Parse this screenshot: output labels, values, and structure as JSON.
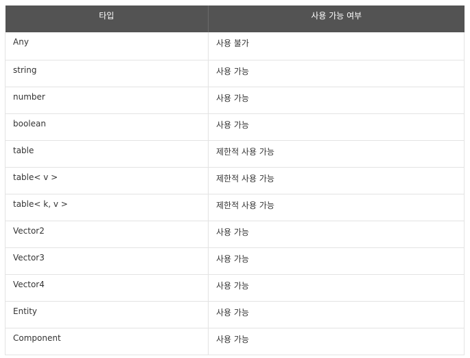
{
  "table": {
    "headers": [
      "타입",
      "사용 가능 여부"
    ],
    "rows": [
      [
        "Any",
        "사용 불가"
      ],
      [
        "string",
        "사용 가능"
      ],
      [
        "number",
        "사용 가능"
      ],
      [
        "boolean",
        "사용 가능"
      ],
      [
        "table",
        "제한적 사용 가능"
      ],
      [
        "table< v >",
        "제한적 사용 가능"
      ],
      [
        "table< k, v >",
        "제한적 사용 가능"
      ],
      [
        "Vector2",
        "사용 가능"
      ],
      [
        "Vector3",
        "사용 가능"
      ],
      [
        "Vector4",
        "사용 가능"
      ],
      [
        "Entity",
        "사용 가능"
      ],
      [
        "Component",
        "사용 가능"
      ]
    ]
  },
  "colors": {
    "header_bg": "#535353",
    "header_text": "#ffffff",
    "border": "#e3e3e3",
    "cell_text": "#333333"
  }
}
